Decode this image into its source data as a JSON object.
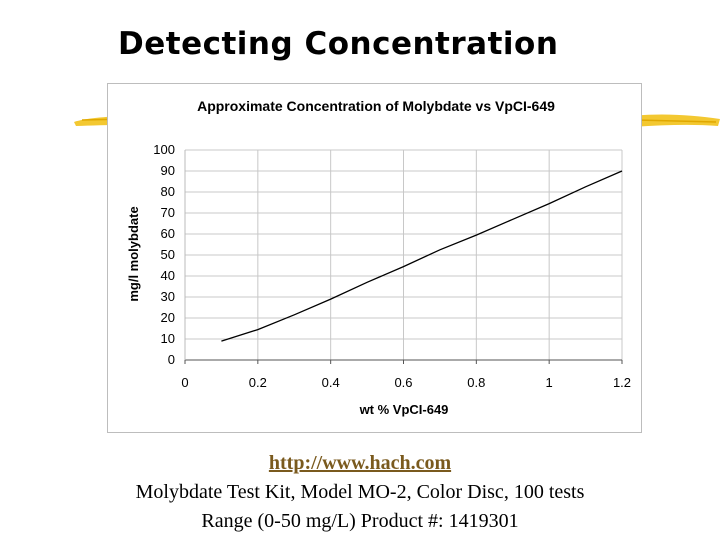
{
  "slide": {
    "title": "Detecting Concentration",
    "link_text": "http://www.hach.com",
    "line1": "Molybdate Test Kit, Model MO-2, Color Disc, 100 tests",
    "line2": "Range (0-50 mg/L)  Product #: 1419301",
    "accent_color": "#f2c21b",
    "link_color": "#7a5a1e"
  },
  "chart_data": {
    "type": "line",
    "title": "Approximate Concentration of Molybdate vs VpCI-649",
    "xlabel": "wt % VpCI-649",
    "ylabel": "mg/l molybdate",
    "xlim": [
      0,
      1.2
    ],
    "ylim": [
      0,
      100
    ],
    "x_ticks": [
      0,
      0.2,
      0.4,
      0.6,
      0.8,
      1,
      1.2
    ],
    "x_tick_labels": [
      "0",
      "0.2",
      "0.4",
      "0.6",
      "0.8",
      "1",
      "1.2"
    ],
    "y_ticks": [
      0,
      10,
      20,
      30,
      40,
      50,
      60,
      70,
      80,
      90,
      100
    ],
    "y_tick_labels": [
      "0",
      "10",
      "20",
      "30",
      "40",
      "50",
      "60",
      "70",
      "80",
      "90",
      "100"
    ],
    "grid": true,
    "series": [
      {
        "color": "#000000",
        "x": [
          0.1,
          0.2,
          0.3,
          0.4,
          0.5,
          0.6,
          0.7,
          0.8,
          0.9,
          1.0,
          1.1,
          1.2
        ],
        "y": [
          9,
          14.5,
          21.5,
          29,
          37,
          44.5,
          52.5,
          59.5,
          67,
          74.5,
          82.5,
          90
        ]
      }
    ]
  }
}
